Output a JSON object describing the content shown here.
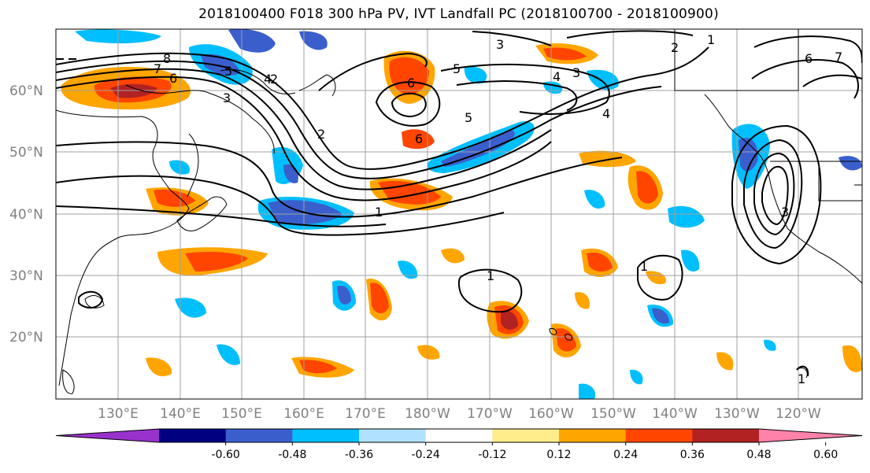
{
  "title": "2018100400 F018 300 hPa PV, IVT Landfall PC (2018100700 - 2018100900)",
  "colors": {
    "coast": "#000000",
    "grid": "#a0a0a0",
    "contour": "#000000"
  },
  "map": {
    "lat_ticks": [
      "60°N",
      "50°N",
      "40°N",
      "30°N",
      "20°N"
    ],
    "lon_ticks": [
      "130°E",
      "140°E",
      "150°E",
      "160°E",
      "170°E",
      "180°W",
      "170°W",
      "160°W",
      "150°W",
      "140°W",
      "130°W",
      "120°W"
    ],
    "contour_labels": [
      "8",
      "7",
      "6",
      "5",
      "4",
      "3",
      "2",
      "1",
      "6",
      "5",
      "4",
      "3",
      "2",
      "1",
      "4",
      "5",
      "6",
      "7",
      "3",
      "1",
      "1",
      "1",
      "6",
      "2",
      "3"
    ]
  },
  "colorbar": {
    "tick_labels": [
      "-0.60",
      "-0.48",
      "-0.36",
      "-0.24",
      "-0.12",
      "0.12",
      "0.24",
      "0.36",
      "0.48",
      "0.60"
    ],
    "colors": [
      "#9932cc",
      "#000080",
      "#3a5fcd",
      "#00bfff",
      "#b0e2ff",
      "#ffffff",
      "#ffec8b",
      "#ffa500",
      "#ff4500",
      "#b22222",
      "#ff82ab"
    ]
  }
}
